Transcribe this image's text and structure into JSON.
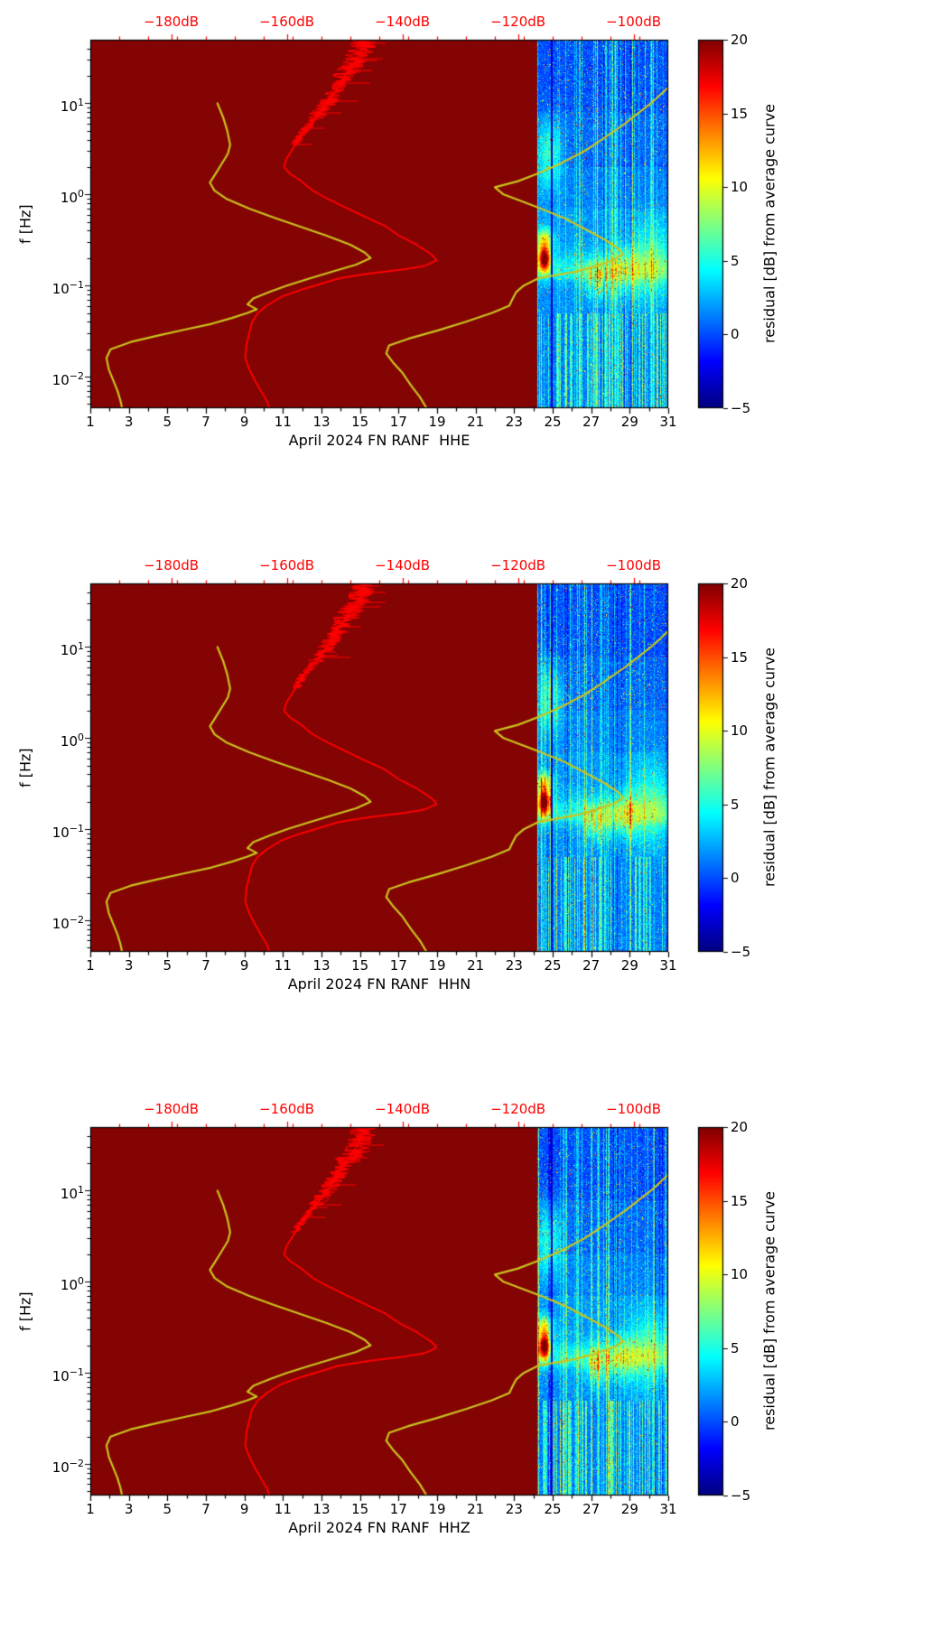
{
  "page": {
    "background": "#ffffff"
  },
  "chart_data": {
    "type": "heatmap",
    "subtype": "psd-residual-spectrogram-with-reference-curves",
    "description": "Three stacked panels (channels HHE, HHN, HHZ) showing residual spectrograms for the last week of April 2024 over a dark-red masked background, with a red median PSD curve and two yellow Peterson noise-model reference curves plotted against the red top dB axis.",
    "panels": [
      {
        "channel": "HHE",
        "xlabel": "April 2024 FN RANF  HHE",
        "seed": 101
      },
      {
        "channel": "HHN",
        "xlabel": "April 2024 FN RANF  HHN",
        "seed": 202
      },
      {
        "channel": "HHZ",
        "xlabel": "April 2024 FN RANF  HHZ",
        "seed": 303
      }
    ],
    "y_axis": {
      "label": "f [Hz]",
      "scale": "log",
      "min": 0.0045,
      "max": 50,
      "tick_labels": [
        {
          "value": 0.01,
          "mantissa": "10",
          "exp": "−2"
        },
        {
          "value": 0.1,
          "mantissa": "10",
          "exp": "−1"
        },
        {
          "value": 1,
          "mantissa": "10",
          "exp": "0"
        },
        {
          "value": 10,
          "mantissa": "10",
          "exp": "1"
        }
      ]
    },
    "x_axis_bottom": {
      "min": 1,
      "max": 31,
      "major_ticks": [
        1,
        3,
        5,
        7,
        9,
        11,
        13,
        15,
        17,
        19,
        21,
        23,
        25,
        27,
        29,
        31
      ]
    },
    "x_axis_top": {
      "min": -194,
      "max": -94,
      "color": "#ff0000",
      "minor_step": 5,
      "ticks": [
        {
          "value": -180,
          "label": "−180dB"
        },
        {
          "value": -160,
          "label": "−160dB"
        },
        {
          "value": -140,
          "label": "−140dB"
        },
        {
          "value": -120,
          "label": "−120dB"
        },
        {
          "value": -100,
          "label": "−100dB"
        }
      ]
    },
    "colorbar": {
      "label": "residual [dB] from average curve",
      "colormap": "jet",
      "min": -5,
      "max": 20,
      "ticks": [
        {
          "value": -5,
          "label": "−5"
        },
        {
          "value": 0,
          "label": "0"
        },
        {
          "value": 5,
          "label": "5"
        },
        {
          "value": 10,
          "label": "10"
        },
        {
          "value": 15,
          "label": "15"
        },
        {
          "value": 20,
          "label": "20"
        }
      ]
    },
    "plot_bg_color": "#840303",
    "series": {
      "median_psd": {
        "name": "median PSD",
        "color": "#ff0000",
        "x_axis": "top_dB",
        "noisy_above_hz": 3.5,
        "points": [
          [
            50,
            -146.5
          ],
          [
            40,
            -147
          ],
          [
            30,
            -148
          ],
          [
            20,
            -150
          ],
          [
            15,
            -151.2
          ],
          [
            10,
            -153
          ],
          [
            7,
            -155
          ],
          [
            5,
            -157
          ],
          [
            4,
            -158
          ],
          [
            3,
            -159.2
          ],
          [
            2.5,
            -160
          ],
          [
            2,
            -160.5
          ],
          [
            1.7,
            -159.5
          ],
          [
            1.4,
            -157.5
          ],
          [
            1.1,
            -155.5
          ],
          [
            0.9,
            -153
          ],
          [
            0.7,
            -149.5
          ],
          [
            0.55,
            -146
          ],
          [
            0.45,
            -143
          ],
          [
            0.35,
            -140.5
          ],
          [
            0.28,
            -137.5
          ],
          [
            0.22,
            -135
          ],
          [
            0.19,
            -134
          ],
          [
            0.165,
            -136
          ],
          [
            0.15,
            -140
          ],
          [
            0.135,
            -146
          ],
          [
            0.12,
            -151
          ],
          [
            0.105,
            -154
          ],
          [
            0.09,
            -157.5
          ],
          [
            0.075,
            -161
          ],
          [
            0.06,
            -163.5
          ],
          [
            0.05,
            -165
          ],
          [
            0.04,
            -166
          ],
          [
            0.03,
            -166.5
          ],
          [
            0.022,
            -167
          ],
          [
            0.016,
            -167.2
          ],
          [
            0.012,
            -166.5
          ],
          [
            0.009,
            -165.5
          ],
          [
            0.007,
            -164.5
          ],
          [
            0.0055,
            -163.5
          ],
          [
            0.0045,
            -163
          ]
        ]
      },
      "nlnm": {
        "name": "low noise reference curve",
        "color": "#c9c41f",
        "x_axis": "top_dB",
        "points": [
          [
            10,
            -172
          ],
          [
            7,
            -171
          ],
          [
            5,
            -170.3
          ],
          [
            3.5,
            -169.8
          ],
          [
            2.8,
            -170.2
          ],
          [
            2.2,
            -171.2
          ],
          [
            1.7,
            -172.3
          ],
          [
            1.35,
            -173.3
          ],
          [
            1.1,
            -172.5
          ],
          [
            0.9,
            -170.5
          ],
          [
            0.7,
            -166.5
          ],
          [
            0.55,
            -162
          ],
          [
            0.45,
            -158
          ],
          [
            0.35,
            -153
          ],
          [
            0.28,
            -149
          ],
          [
            0.23,
            -146.5
          ],
          [
            0.2,
            -145.5
          ],
          [
            0.17,
            -148
          ],
          [
            0.14,
            -152.5
          ],
          [
            0.12,
            -156
          ],
          [
            0.1,
            -160
          ],
          [
            0.085,
            -163
          ],
          [
            0.072,
            -165.8
          ],
          [
            0.062,
            -166.8
          ],
          [
            0.055,
            -165.2
          ],
          [
            0.05,
            -166.8
          ],
          [
            0.044,
            -169.5
          ],
          [
            0.038,
            -173
          ],
          [
            0.033,
            -177.5
          ],
          [
            0.028,
            -182.5
          ],
          [
            0.024,
            -187
          ],
          [
            0.02,
            -190.5
          ],
          [
            0.016,
            -191.2
          ],
          [
            0.012,
            -190.8
          ],
          [
            0.009,
            -190
          ],
          [
            0.007,
            -189.3
          ],
          [
            0.0055,
            -188.8
          ],
          [
            0.0045,
            -188.5
          ]
        ]
      },
      "nhnm": {
        "name": "high noise reference curve",
        "color": "#c9c41f",
        "x_axis": "top_dB",
        "points": [
          [
            15,
            -94
          ],
          [
            10,
            -97
          ],
          [
            6,
            -101.5
          ],
          [
            4,
            -105.5
          ],
          [
            3,
            -108.5
          ],
          [
            2.2,
            -112.5
          ],
          [
            1.7,
            -116.5
          ],
          [
            1.4,
            -120
          ],
          [
            1.2,
            -124
          ],
          [
            1.0,
            -122.5
          ],
          [
            0.85,
            -119.5
          ],
          [
            0.7,
            -116
          ],
          [
            0.55,
            -112
          ],
          [
            0.42,
            -108.5
          ],
          [
            0.32,
            -105
          ],
          [
            0.26,
            -102.8
          ],
          [
            0.22,
            -101.8
          ],
          [
            0.19,
            -103.5
          ],
          [
            0.16,
            -107
          ],
          [
            0.14,
            -110.5
          ],
          [
            0.12,
            -116.5
          ],
          [
            0.1,
            -119
          ],
          [
            0.085,
            -120.3
          ],
          [
            0.07,
            -121
          ],
          [
            0.06,
            -121.5
          ],
          [
            0.05,
            -124.5
          ],
          [
            0.04,
            -129
          ],
          [
            0.032,
            -134
          ],
          [
            0.026,
            -139
          ],
          [
            0.022,
            -142.3
          ],
          [
            0.018,
            -142.8
          ],
          [
            0.014,
            -141.5
          ],
          [
            0.011,
            -140
          ],
          [
            0.008,
            -138.5
          ],
          [
            0.006,
            -137
          ],
          [
            0.0045,
            -135.8
          ]
        ]
      }
    },
    "spectrogram": {
      "day_start": 24.2,
      "day_end": 31,
      "value_min": -5,
      "value_max": 20,
      "base_levels": [
        [
          0.0045,
          0.05,
          1.2
        ],
        [
          0.05,
          0.12,
          1.6
        ],
        [
          0.12,
          0.3,
          2.2
        ],
        [
          0.3,
          0.7,
          1.8
        ],
        [
          0.7,
          2,
          1.2
        ],
        [
          2,
          8,
          0.6
        ],
        [
          8,
          50,
          0.0
        ]
      ],
      "features": [
        {
          "name": "strong-residual-blob",
          "day": 24.55,
          "day_sigma": 0.22,
          "logf": -0.7,
          "logf_sigma": 0.1,
          "amp": 19
        },
        {
          "name": "secondary-blob",
          "day": 24.55,
          "day_sigma": 0.3,
          "logf": -0.48,
          "logf_sigma": 0.08,
          "amp": 8
        },
        {
          "name": "orange-streaks-1",
          "day": 27.3,
          "day_sigma": 0.45,
          "logf": -0.92,
          "logf_sigma": 0.14,
          "amp": 9
        },
        {
          "name": "orange-streaks-2",
          "day": 28.7,
          "day_sigma": 0.5,
          "logf": -0.85,
          "logf_sigma": 0.16,
          "amp": 8
        },
        {
          "name": "cyan-patch-high-f",
          "day": 24.8,
          "day_sigma": 0.45,
          "logf": 0.45,
          "logf_sigma": 0.28,
          "amp": 5
        },
        {
          "name": "cyan-patch-right",
          "day": 30.1,
          "day_sigma": 0.8,
          "logf": -0.75,
          "logf_sigma": 0.3,
          "amp": 4
        },
        {
          "name": "persistent-band",
          "logf": -0.82,
          "logf_sigma": 0.1,
          "amp": 2.5
        },
        {
          "name": "dark-column",
          "day": 24.93,
          "width": 0.035,
          "value": -3.5
        }
      ]
    }
  }
}
